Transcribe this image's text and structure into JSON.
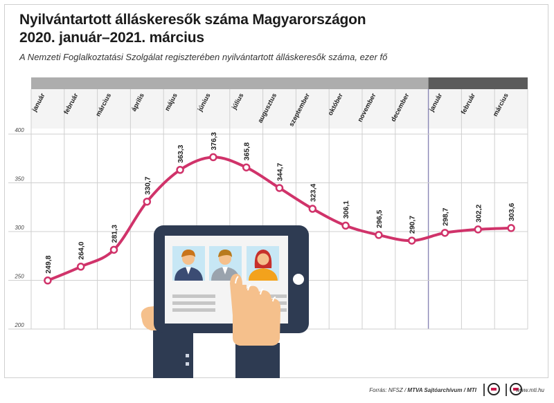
{
  "title_line1": "Nyilvántartott álláskeresők száma Magyarországon",
  "title_line2": "2020. január–2021. március",
  "subtitle": "A Nemzeti Foglalkoztatási Szolgálat regiszterében nyilvántartott álláskeresők száma, ezer fő",
  "footer": {
    "source_prefix": "Forrás: NFSZ / ",
    "source_bold": "MTVA Sajtóarchívum / MTI",
    "site": "www.mti.hu"
  },
  "colors": {
    "line": "#d0336a",
    "header_dark": "#5b5b5b",
    "header_light": "#adadad",
    "grid": "#cfcfcf"
  },
  "icons": [
    "tablet-icon",
    "person-avatar-icon",
    "hand-icon",
    "pointing-hand-icon",
    "mtva-logo-icon",
    "mti-logo-icon"
  ],
  "chart_data": {
    "type": "line",
    "title": "Nyilvántartott álláskeresők száma Magyarországon 2020. január–2021. március",
    "categories": [
      "január",
      "február",
      "március",
      "április",
      "május",
      "június",
      "július",
      "augusztus",
      "szeptember",
      "október",
      "november",
      "december",
      "január",
      "február",
      "március"
    ],
    "period_groups": [
      {
        "start": 0,
        "end": 11
      },
      {
        "start": 12,
        "end": 14
      }
    ],
    "values": [
      249.8,
      264.0,
      281.3,
      330.7,
      363.3,
      376.3,
      365.8,
      344.7,
      323.4,
      306.1,
      296.5,
      290.7,
      298.7,
      302.2,
      303.6
    ],
    "value_labels": [
      "249,8",
      "264,0",
      "281,3",
      "330,7",
      "363,3",
      "376,3",
      "365,8",
      "344,7",
      "323,4",
      "306,1",
      "296,5",
      "290,7",
      "298,7",
      "302,2",
      "303,6"
    ],
    "yticks": [
      200,
      250,
      300,
      350,
      400
    ],
    "ylim": [
      200,
      400
    ],
    "grid": true,
    "legend": "none"
  }
}
